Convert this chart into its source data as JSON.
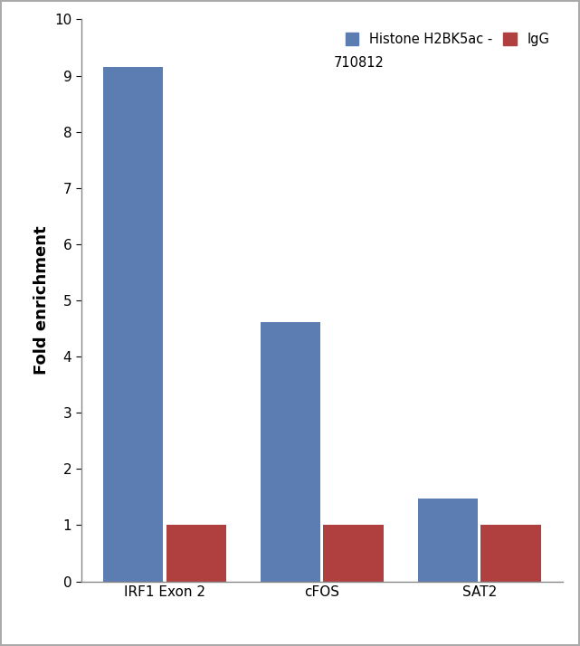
{
  "categories": [
    "IRF1 Exon 2",
    "cFOS",
    "SAT2"
  ],
  "series": [
    {
      "label": "Histone H2BK5ac -",
      "label2": "710812",
      "values": [
        9.15,
        4.62,
        1.48
      ],
      "color": "#5B7DB1"
    },
    {
      "label": "IgG",
      "label2": "",
      "values": [
        1.0,
        1.0,
        1.0
      ],
      "color": "#B04040"
    }
  ],
  "ylabel": "Fold enrichment",
  "ylim": [
    0,
    10
  ],
  "yticks": [
    0,
    1,
    2,
    3,
    4,
    5,
    6,
    7,
    8,
    9,
    10
  ],
  "bar_width": 0.38,
  "legend_fontsize": 10.5,
  "ylabel_fontsize": 13,
  "tick_fontsize": 11,
  "background_color": "#FFFFFF",
  "border_color": "#AAAAAA",
  "figsize": [
    6.41,
    7.14
  ],
  "dpi": 100
}
